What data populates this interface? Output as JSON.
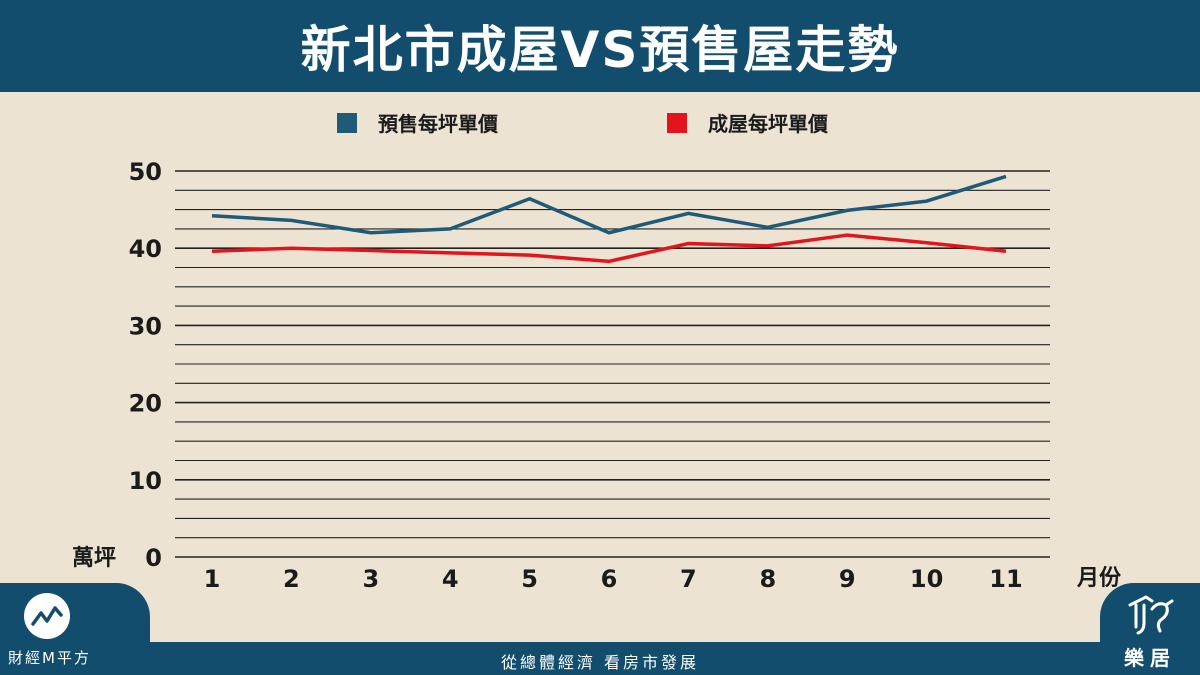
{
  "header": {
    "title": "新北市成屋VS預售屋走勢"
  },
  "footer": {
    "tagline": "從總體經濟 看房市發展"
  },
  "brand_left": {
    "name": "財經M平方"
  },
  "brand_right": {
    "name": "樂居"
  },
  "colors": {
    "header": "#124d6d",
    "background": "#ece3d3",
    "presale": "#1f5a78",
    "existing": "#e3141b"
  },
  "chart_data": {
    "type": "line",
    "title": "新北市成屋VS預售屋走勢",
    "x": [
      1,
      2,
      3,
      4,
      5,
      6,
      7,
      8,
      9,
      10,
      11
    ],
    "xlabel": "月份",
    "ylabel": "萬坪",
    "ylim": [
      0,
      50
    ],
    "yticks": [
      0,
      10,
      20,
      30,
      40,
      50
    ],
    "grid": true,
    "legend_position": "top",
    "series": [
      {
        "name": "預售每坪單價",
        "color": "#1f5a78",
        "values": [
          44.2,
          43.6,
          42.0,
          42.5,
          46.4,
          42.0,
          44.5,
          42.7,
          44.9,
          46.1,
          49.3
        ]
      },
      {
        "name": "成屋每坪單價",
        "color": "#e3141b",
        "values": [
          39.6,
          40.0,
          39.7,
          39.4,
          39.1,
          38.3,
          40.6,
          40.3,
          41.7,
          40.7,
          39.6
        ]
      }
    ]
  }
}
